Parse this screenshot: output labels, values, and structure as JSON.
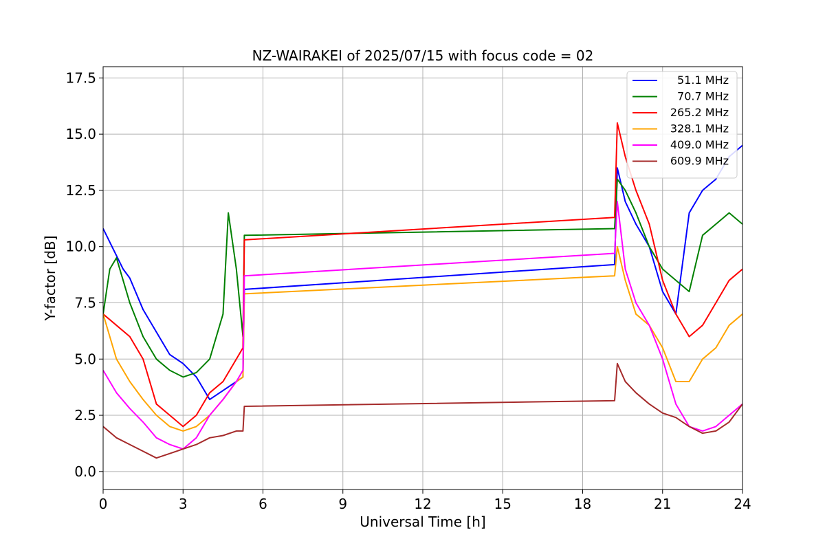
{
  "chart_data": {
    "type": "line",
    "title": "NZ-WAIRAKEI of 2025/07/15 with focus code = 02",
    "xlabel": "Universal Time [h]",
    "ylabel": "Y-factor [dB]",
    "xlim": [
      0,
      24
    ],
    "ylim": [
      -0.8,
      18.0
    ],
    "xticks": [
      "0",
      "3",
      "6",
      "9",
      "12",
      "15",
      "18",
      "21",
      "24"
    ],
    "yticks": [
      "0.0",
      "2.5",
      "5.0",
      "7.5",
      "10.0",
      "12.5",
      "15.0",
      "17.5"
    ],
    "grid": true,
    "legend_position": "top-right",
    "series": [
      {
        "name": "51.1 MHz",
        "color": "#0000ff",
        "x": [
          0,
          0.25,
          0.5,
          0.75,
          1,
          1.5,
          2,
          2.5,
          3,
          3.5,
          4,
          4.5,
          5,
          5.25,
          5.3,
          19.2,
          19.3,
          19.6,
          20,
          20.5,
          21,
          21.5,
          22,
          22.5,
          23,
          23.5,
          24
        ],
        "y": [
          10.8,
          10.2,
          9.6,
          9.0,
          8.6,
          7.2,
          6.2,
          5.2,
          4.8,
          4.2,
          3.2,
          3.6,
          4.0,
          4.2,
          8.1,
          9.2,
          13.5,
          12.0,
          11.0,
          10.0,
          8.0,
          7.0,
          11.5,
          12.5,
          13.0,
          14.0,
          14.5
        ]
      },
      {
        "name": "70.7 MHz",
        "color": "#008000",
        "x": [
          0,
          0.25,
          0.5,
          0.75,
          1,
          1.5,
          2,
          2.5,
          3,
          3.5,
          4,
          4.5,
          4.7,
          5,
          5.25,
          5.3,
          19.2,
          19.3,
          19.6,
          20,
          20.5,
          21,
          21.5,
          22,
          22.5,
          23,
          23.5,
          24
        ],
        "y": [
          7.0,
          9.0,
          9.5,
          8.5,
          7.5,
          6.0,
          5.0,
          4.5,
          4.2,
          4.4,
          5.0,
          7.0,
          11.5,
          9.0,
          6.0,
          10.5,
          10.8,
          13.0,
          12.5,
          11.5,
          10.0,
          9.0,
          8.5,
          8.0,
          10.5,
          11.0,
          11.5,
          11.0
        ]
      },
      {
        "name": "265.2 MHz",
        "color": "#ff0000",
        "x": [
          0,
          0.5,
          1,
          1.5,
          2,
          2.5,
          3,
          3.5,
          4,
          4.5,
          5,
          5.25,
          5.3,
          19.2,
          19.3,
          19.6,
          20,
          20.5,
          21,
          21.5,
          22,
          22.5,
          23,
          23.5,
          24
        ],
        "y": [
          7.0,
          6.5,
          6.0,
          5.0,
          3.0,
          2.5,
          2.0,
          2.5,
          3.5,
          4.0,
          5.0,
          5.5,
          10.3,
          11.3,
          15.5,
          14.0,
          12.5,
          11.0,
          8.5,
          7.0,
          6.0,
          6.5,
          7.5,
          8.5,
          9.0
        ]
      },
      {
        "name": "328.1 MHz",
        "color": "#ffa500",
        "x": [
          0,
          0.5,
          1,
          1.5,
          2,
          2.5,
          3,
          3.5,
          4,
          4.5,
          5,
          5.25,
          5.3,
          19.2,
          19.3,
          19.6,
          20,
          20.5,
          21,
          21.5,
          22,
          22.5,
          23,
          23.5,
          24
        ],
        "y": [
          7.0,
          5.0,
          4.0,
          3.2,
          2.5,
          2.0,
          1.8,
          2.0,
          2.5,
          3.2,
          4.0,
          4.2,
          7.9,
          8.7,
          10.0,
          8.5,
          7.0,
          6.5,
          5.5,
          4.0,
          4.0,
          5.0,
          5.5,
          6.5,
          7.0
        ]
      },
      {
        "name": "409.0 MHz",
        "color": "#ff00ff",
        "x": [
          0,
          0.5,
          1,
          1.5,
          2,
          2.5,
          3,
          3.5,
          4,
          4.5,
          5,
          5.25,
          5.3,
          19.2,
          19.3,
          19.6,
          20,
          20.5,
          21,
          21.5,
          22,
          22.5,
          23,
          23.5,
          24
        ],
        "y": [
          4.5,
          3.5,
          2.8,
          2.2,
          1.5,
          1.2,
          1.0,
          1.5,
          2.5,
          3.2,
          4.0,
          4.5,
          8.7,
          9.7,
          12.0,
          9.0,
          7.5,
          6.5,
          5.0,
          3.0,
          2.0,
          1.8,
          2.0,
          2.5,
          3.0
        ]
      },
      {
        "name": "609.9 MHz",
        "color": "#a52a2a",
        "x": [
          0,
          0.5,
          1,
          1.5,
          2,
          2.5,
          3,
          3.5,
          4,
          4.5,
          5,
          5.25,
          5.3,
          19.2,
          19.3,
          19.6,
          20,
          20.5,
          21,
          21.5,
          22,
          22.5,
          23,
          23.5,
          24
        ],
        "y": [
          2.0,
          1.5,
          1.2,
          0.9,
          0.6,
          0.8,
          1.0,
          1.2,
          1.5,
          1.6,
          1.8,
          1.8,
          2.9,
          3.15,
          4.8,
          4.0,
          3.5,
          3.0,
          2.6,
          2.4,
          2.0,
          1.7,
          1.8,
          2.2,
          3.0
        ]
      }
    ]
  }
}
